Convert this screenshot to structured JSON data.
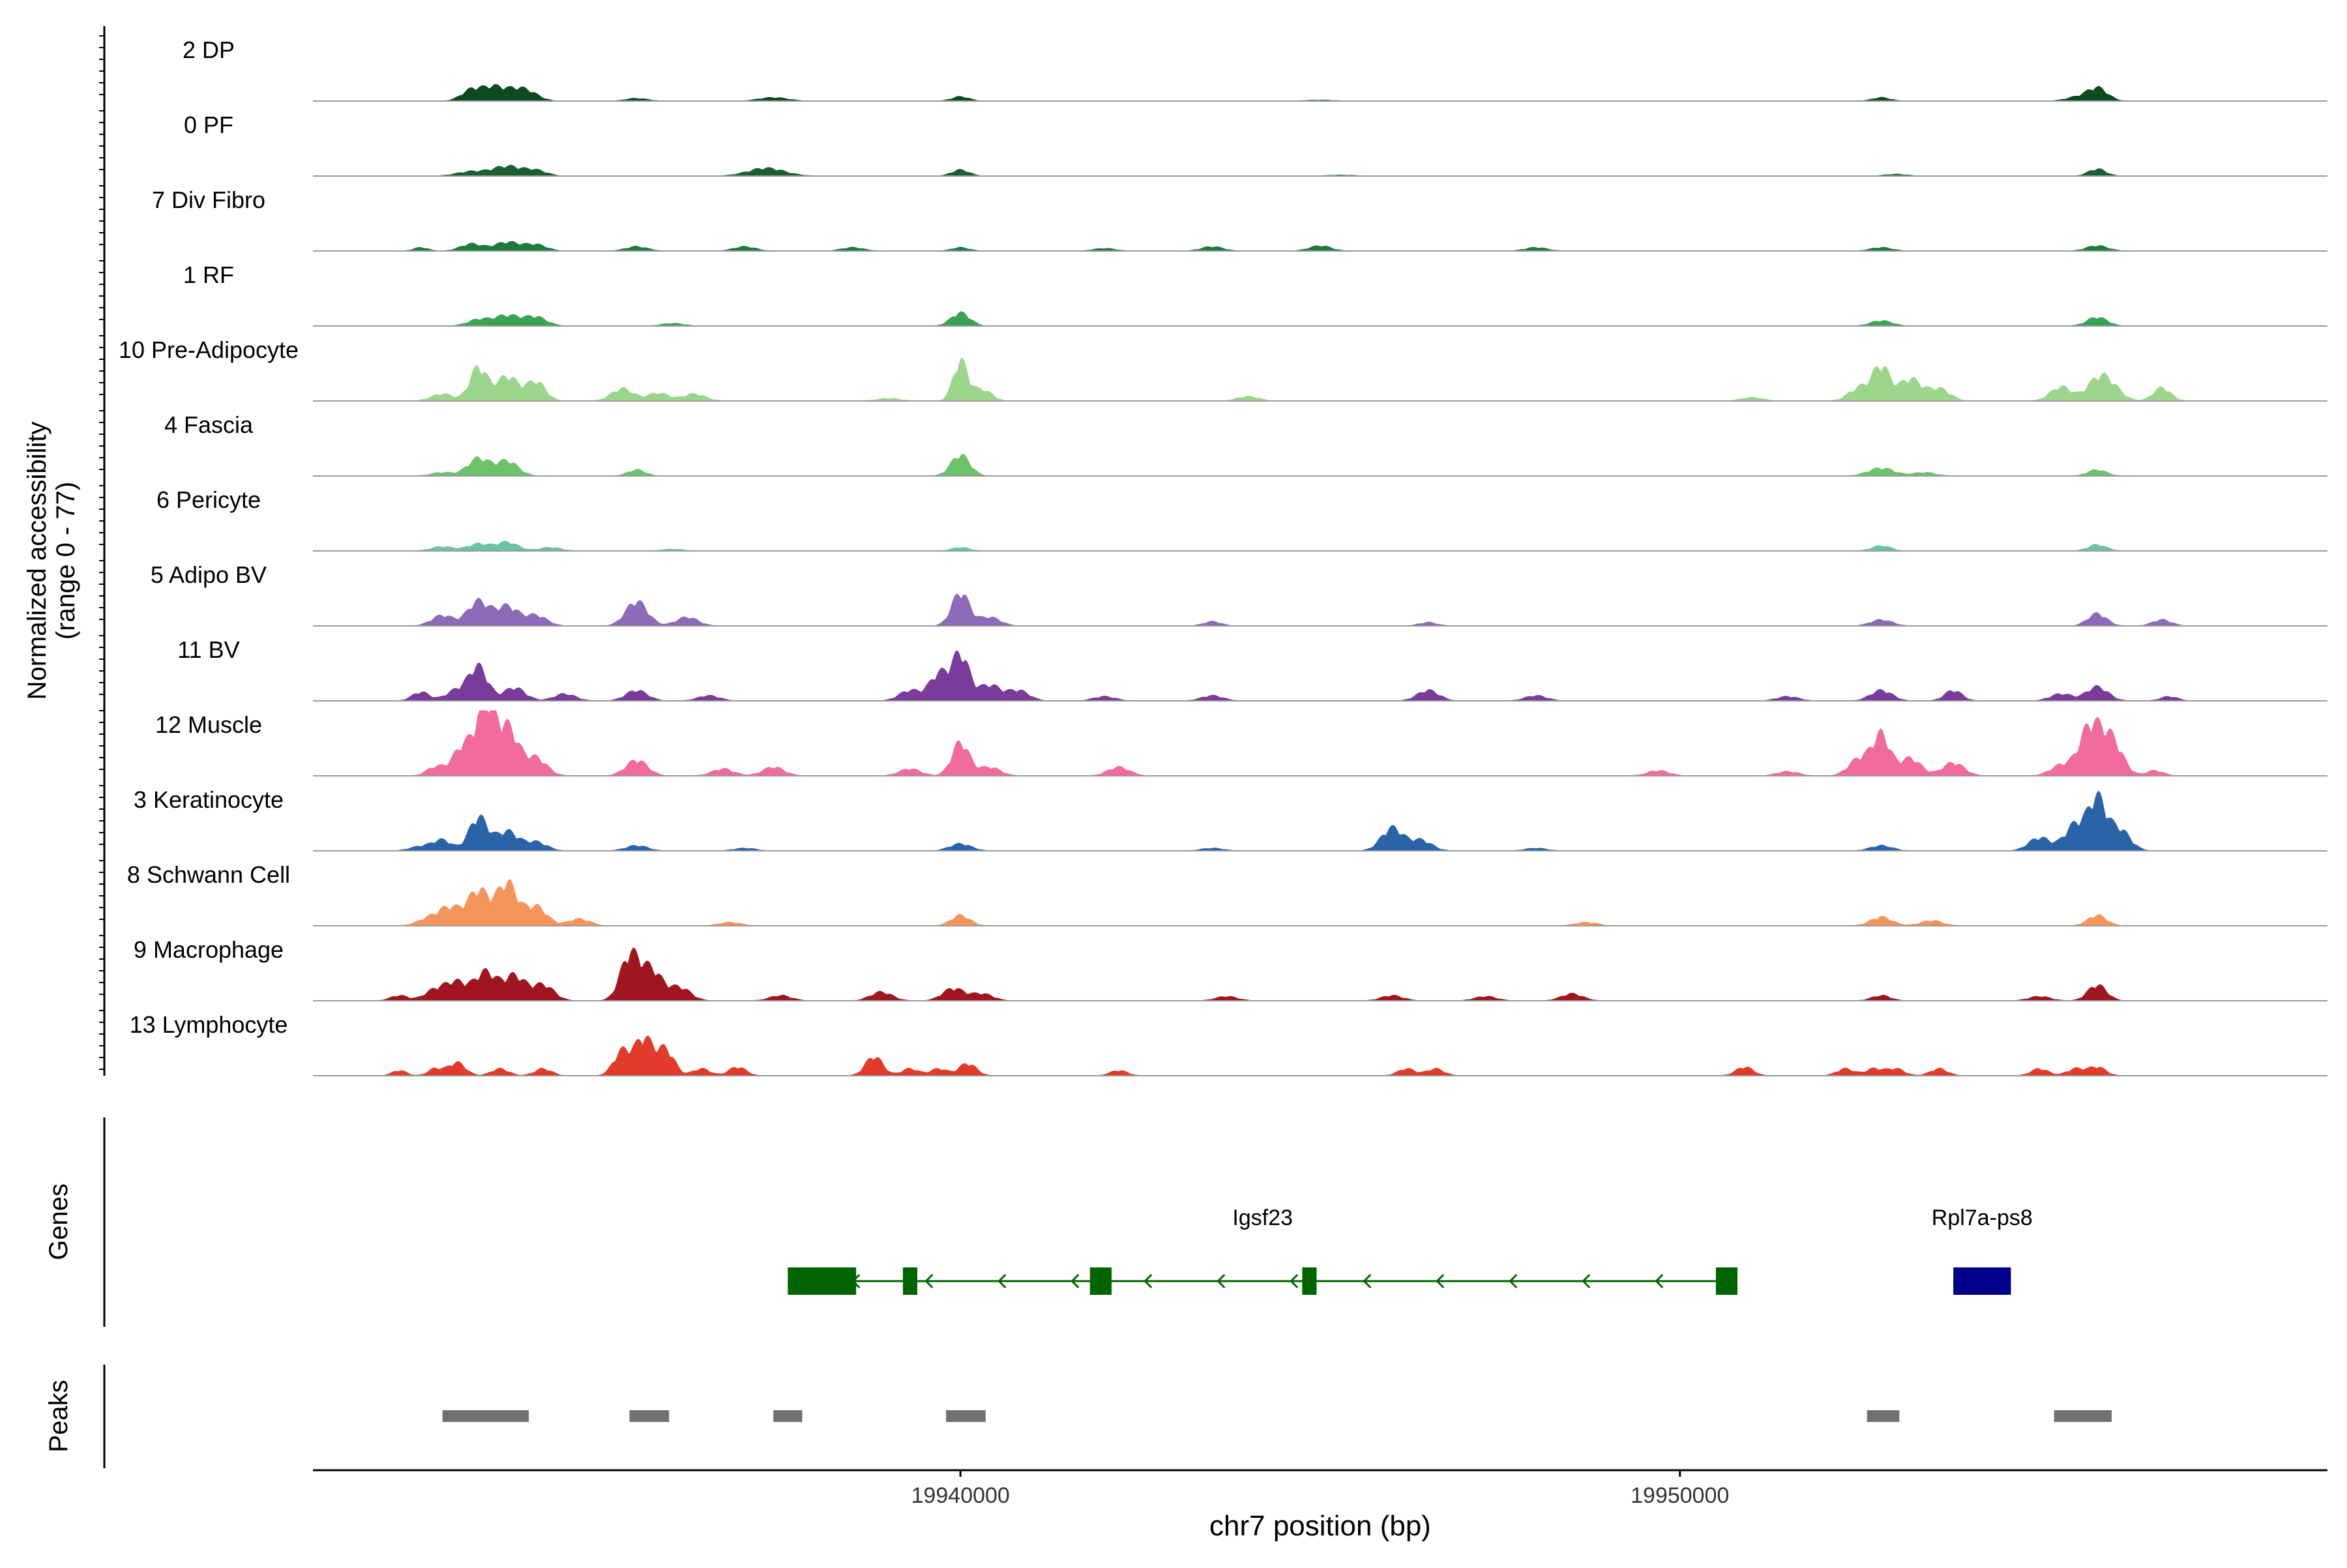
{
  "chart_data": {
    "type": "area",
    "title": "",
    "y_axis_label_line1": "Normalized accessibility",
    "y_axis_label_line2": "(range 0 - 77)",
    "y_range": [
      0,
      77
    ],
    "x_axis_label": "chr7 position (bp)",
    "x_range": [
      19931000,
      19959000
    ],
    "x_ticks": [
      {
        "value": 19940000,
        "label": "19940000"
      },
      {
        "value": 19950000,
        "label": "19950000"
      }
    ],
    "track_types": {
      "genes": "Genes",
      "peaks": "Peaks"
    },
    "tracks": [
      {
        "name": "2 DP",
        "color": "#0d4a1f",
        "peaks": [
          [
            19933230,
            14,
            150
          ],
          [
            19933500,
            10,
            120
          ],
          [
            19933750,
            12,
            180
          ],
          [
            19934000,
            8,
            150
          ],
          [
            19935500,
            3,
            150
          ],
          [
            19937400,
            4,
            200
          ],
          [
            19940000,
            5,
            120
          ],
          [
            19945000,
            1,
            200
          ],
          [
            19952800,
            4,
            120
          ],
          [
            19955800,
            15,
            140
          ],
          [
            19955500,
            4,
            150
          ]
        ]
      },
      {
        "name": "0 PF",
        "color": "#1b5e32",
        "peaks": [
          [
            19933200,
            5,
            200
          ],
          [
            19933700,
            11,
            200
          ],
          [
            19934100,
            6,
            150
          ],
          [
            19937300,
            9,
            250
          ],
          [
            19940000,
            7,
            120
          ],
          [
            19945300,
            1,
            200
          ],
          [
            19953000,
            2,
            150
          ],
          [
            19955800,
            8,
            120
          ]
        ]
      },
      {
        "name": "7 Div Fibro",
        "color": "#1e7a3d",
        "peaks": [
          [
            19932500,
            4,
            100
          ],
          [
            19933200,
            8,
            150
          ],
          [
            19933700,
            10,
            180
          ],
          [
            19934100,
            7,
            150
          ],
          [
            19935500,
            5,
            150
          ],
          [
            19937000,
            5,
            150
          ],
          [
            19938500,
            4,
            150
          ],
          [
            19940000,
            4,
            120
          ],
          [
            19942000,
            3,
            150
          ],
          [
            19943500,
            5,
            150
          ],
          [
            19945000,
            6,
            150
          ],
          [
            19948000,
            4,
            150
          ],
          [
            19952800,
            4,
            150
          ],
          [
            19955800,
            6,
            150
          ]
        ]
      },
      {
        "name": "1 RF",
        "color": "#3aa356",
        "peaks": [
          [
            19933300,
            7,
            150
          ],
          [
            19933700,
            12,
            180
          ],
          [
            19934100,
            10,
            150
          ],
          [
            19936000,
            3,
            150
          ],
          [
            19940000,
            15,
            130
          ],
          [
            19952800,
            6,
            150
          ],
          [
            19955800,
            10,
            140
          ]
        ]
      },
      {
        "name": "10 Pre-Adipocyte",
        "color": "#9cd68d",
        "peaks": [
          [
            19932800,
            8,
            150
          ],
          [
            19933300,
            38,
            120
          ],
          [
            19933700,
            28,
            150
          ],
          [
            19934100,
            22,
            130
          ],
          [
            19935300,
            14,
            150
          ],
          [
            19935800,
            9,
            150
          ],
          [
            19936300,
            8,
            150
          ],
          [
            19939000,
            3,
            150
          ],
          [
            19940000,
            45,
            100
          ],
          [
            19940300,
            13,
            130
          ],
          [
            19944000,
            5,
            150
          ],
          [
            19951000,
            4,
            150
          ],
          [
            19952500,
            15,
            150
          ],
          [
            19952800,
            38,
            120
          ],
          [
            19953200,
            25,
            150
          ],
          [
            19953600,
            14,
            150
          ],
          [
            19955300,
            16,
            150
          ],
          [
            19955800,
            22,
            150
          ],
          [
            19956000,
            14,
            150
          ],
          [
            19956700,
            15,
            120
          ]
        ]
      },
      {
        "name": "4 Fascia",
        "color": "#6cc36c",
        "peaks": [
          [
            19932800,
            4,
            150
          ],
          [
            19933300,
            20,
            150
          ],
          [
            19933700,
            17,
            150
          ],
          [
            19935500,
            7,
            120
          ],
          [
            19940000,
            24,
            130
          ],
          [
            19952800,
            9,
            180
          ],
          [
            19953400,
            4,
            150
          ],
          [
            19955800,
            7,
            130
          ]
        ]
      },
      {
        "name": "6 Pericyte",
        "color": "#6cc4a6",
        "peaks": [
          [
            19932800,
            5,
            150
          ],
          [
            19933300,
            8,
            150
          ],
          [
            19933700,
            10,
            150
          ],
          [
            19934300,
            4,
            150
          ],
          [
            19936000,
            2,
            150
          ],
          [
            19940000,
            4,
            120
          ],
          [
            19952800,
            6,
            130
          ],
          [
            19955800,
            7,
            130
          ]
        ]
      },
      {
        "name": "5 Adipo BV",
        "color": "#8c6bb8",
        "peaks": [
          [
            19932800,
            12,
            150
          ],
          [
            19933300,
            28,
            150
          ],
          [
            19933700,
            22,
            150
          ],
          [
            19934100,
            12,
            150
          ],
          [
            19935500,
            28,
            150
          ],
          [
            19936200,
            10,
            150
          ],
          [
            19940000,
            38,
            120
          ],
          [
            19940400,
            10,
            150
          ],
          [
            19943500,
            5,
            120
          ],
          [
            19946500,
            4,
            120
          ],
          [
            19952800,
            7,
            150
          ],
          [
            19955800,
            14,
            130
          ],
          [
            19956700,
            7,
            130
          ]
        ]
      },
      {
        "name": "11 BV",
        "color": "#7a3c9a",
        "peaks": [
          [
            19932500,
            10,
            120
          ],
          [
            19933000,
            12,
            150
          ],
          [
            19933300,
            38,
            130
          ],
          [
            19933800,
            15,
            150
          ],
          [
            19934500,
            8,
            150
          ],
          [
            19935500,
            12,
            150
          ],
          [
            19936500,
            6,
            150
          ],
          [
            19939300,
            12,
            150
          ],
          [
            19939700,
            30,
            130
          ],
          [
            19940000,
            52,
            120
          ],
          [
            19940400,
            18,
            150
          ],
          [
            19940800,
            12,
            150
          ],
          [
            19942000,
            5,
            150
          ],
          [
            19943500,
            6,
            150
          ],
          [
            19946500,
            12,
            150
          ],
          [
            19948000,
            6,
            150
          ],
          [
            19951500,
            5,
            150
          ],
          [
            19952800,
            12,
            150
          ],
          [
            19953800,
            12,
            120
          ],
          [
            19955300,
            8,
            150
          ],
          [
            19955800,
            16,
            150
          ],
          [
            19956800,
            5,
            120
          ]
        ]
      },
      {
        "name": "12 Muscle",
        "color": "#f26b9d",
        "peaks": [
          [
            19932700,
            10,
            120
          ],
          [
            19933100,
            35,
            150
          ],
          [
            19933400,
            75,
            120
          ],
          [
            19933700,
            55,
            150
          ],
          [
            19934100,
            20,
            150
          ],
          [
            19935500,
            18,
            150
          ],
          [
            19936700,
            8,
            150
          ],
          [
            19937400,
            10,
            150
          ],
          [
            19939300,
            8,
            150
          ],
          [
            19940000,
            38,
            120
          ],
          [
            19940400,
            10,
            150
          ],
          [
            19942200,
            10,
            150
          ],
          [
            19949700,
            6,
            150
          ],
          [
            19951500,
            5,
            150
          ],
          [
            19952500,
            20,
            150
          ],
          [
            19952800,
            45,
            120
          ],
          [
            19953200,
            20,
            150
          ],
          [
            19953800,
            15,
            150
          ],
          [
            19955300,
            12,
            150
          ],
          [
            19955700,
            55,
            150
          ],
          [
            19956000,
            40,
            150
          ],
          [
            19956600,
            6,
            120
          ]
        ]
      },
      {
        "name": "3 Keratinocyte",
        "color": "#2a63a8",
        "peaks": [
          [
            19932500,
            5,
            150
          ],
          [
            19932800,
            12,
            130
          ],
          [
            19933300,
            38,
            130
          ],
          [
            19933700,
            22,
            150
          ],
          [
            19934100,
            10,
            150
          ],
          [
            19935500,
            6,
            150
          ],
          [
            19937000,
            3,
            150
          ],
          [
            19940000,
            8,
            150
          ],
          [
            19943500,
            3,
            150
          ],
          [
            19946000,
            26,
            150
          ],
          [
            19946400,
            12,
            150
          ],
          [
            19948000,
            3,
            150
          ],
          [
            19952800,
            6,
            150
          ],
          [
            19955000,
            15,
            150
          ],
          [
            19955500,
            30,
            150
          ],
          [
            19955800,
            55,
            120
          ],
          [
            19956100,
            25,
            150
          ]
        ]
      },
      {
        "name": "8 Schwann Cell",
        "color": "#f5955c",
        "peaks": [
          [
            19932600,
            8,
            150
          ],
          [
            19932900,
            20,
            150
          ],
          [
            19933300,
            40,
            150
          ],
          [
            19933700,
            48,
            140
          ],
          [
            19934100,
            22,
            150
          ],
          [
            19934700,
            8,
            150
          ],
          [
            19936800,
            4,
            150
          ],
          [
            19940000,
            12,
            130
          ],
          [
            19948700,
            4,
            150
          ],
          [
            19952800,
            10,
            150
          ],
          [
            19953500,
            6,
            150
          ],
          [
            19955800,
            12,
            130
          ]
        ]
      },
      {
        "name": "9 Macrophage",
        "color": "#a01620",
        "peaks": [
          [
            19932200,
            6,
            120
          ],
          [
            19932700,
            12,
            150
          ],
          [
            19933000,
            20,
            150
          ],
          [
            19933400,
            32,
            150
          ],
          [
            19933800,
            28,
            150
          ],
          [
            19934200,
            18,
            150
          ],
          [
            19935400,
            50,
            130
          ],
          [
            19935700,
            35,
            150
          ],
          [
            19936100,
            15,
            150
          ],
          [
            19937500,
            6,
            150
          ],
          [
            19938900,
            10,
            150
          ],
          [
            19939900,
            14,
            150
          ],
          [
            19940300,
            8,
            150
          ],
          [
            19943700,
            5,
            150
          ],
          [
            19946000,
            6,
            150
          ],
          [
            19947300,
            5,
            150
          ],
          [
            19948500,
            8,
            150
          ],
          [
            19952800,
            6,
            130
          ],
          [
            19955000,
            5,
            150
          ],
          [
            19955800,
            18,
            130
          ]
        ]
      },
      {
        "name": "13 Lymphocyte",
        "color": "#e33b2b",
        "peaks": [
          [
            19932200,
            6,
            100
          ],
          [
            19932700,
            8,
            100
          ],
          [
            19933000,
            15,
            120
          ],
          [
            19933600,
            8,
            120
          ],
          [
            19934200,
            8,
            120
          ],
          [
            19935300,
            28,
            120
          ],
          [
            19935600,
            42,
            120
          ],
          [
            19935900,
            30,
            120
          ],
          [
            19936400,
            8,
            120
          ],
          [
            19936900,
            10,
            120
          ],
          [
            19938800,
            22,
            120
          ],
          [
            19939300,
            8,
            120
          ],
          [
            19939700,
            8,
            120
          ],
          [
            19940100,
            14,
            120
          ],
          [
            19942200,
            6,
            120
          ],
          [
            19946200,
            8,
            120
          ],
          [
            19946600,
            8,
            120
          ],
          [
            19950900,
            10,
            120
          ],
          [
            19952300,
            8,
            120
          ],
          [
            19952700,
            8,
            120
          ],
          [
            19953000,
            8,
            120
          ],
          [
            19953600,
            8,
            120
          ],
          [
            19955000,
            8,
            120
          ],
          [
            19955500,
            8,
            120
          ],
          [
            19955800,
            10,
            120
          ]
        ]
      }
    ],
    "genes": [
      {
        "name": "Igsf23",
        "color": "#006400",
        "strand": "-",
        "start": 19937600,
        "end": 19950800,
        "exons": [
          [
            19937600,
            19938550
          ],
          [
            19939200,
            19939400
          ],
          [
            19941800,
            19942100
          ],
          [
            19944750,
            19944950
          ],
          [
            19950500,
            19950800
          ]
        ]
      },
      {
        "name": "Rpl7a-ps8",
        "color": "#00008b",
        "strand": "",
        "start": 19953800,
        "end": 19954600,
        "exons": [
          [
            19953800,
            19954600
          ]
        ]
      }
    ],
    "peak_regions": {
      "color": "#707070",
      "regions": [
        [
          19932800,
          19934000
        ],
        [
          19935400,
          19935950
        ],
        [
          19937400,
          19937800
        ],
        [
          19939800,
          19940350
        ],
        [
          19952600,
          19953050
        ],
        [
          19955200,
          19956000
        ]
      ]
    }
  }
}
